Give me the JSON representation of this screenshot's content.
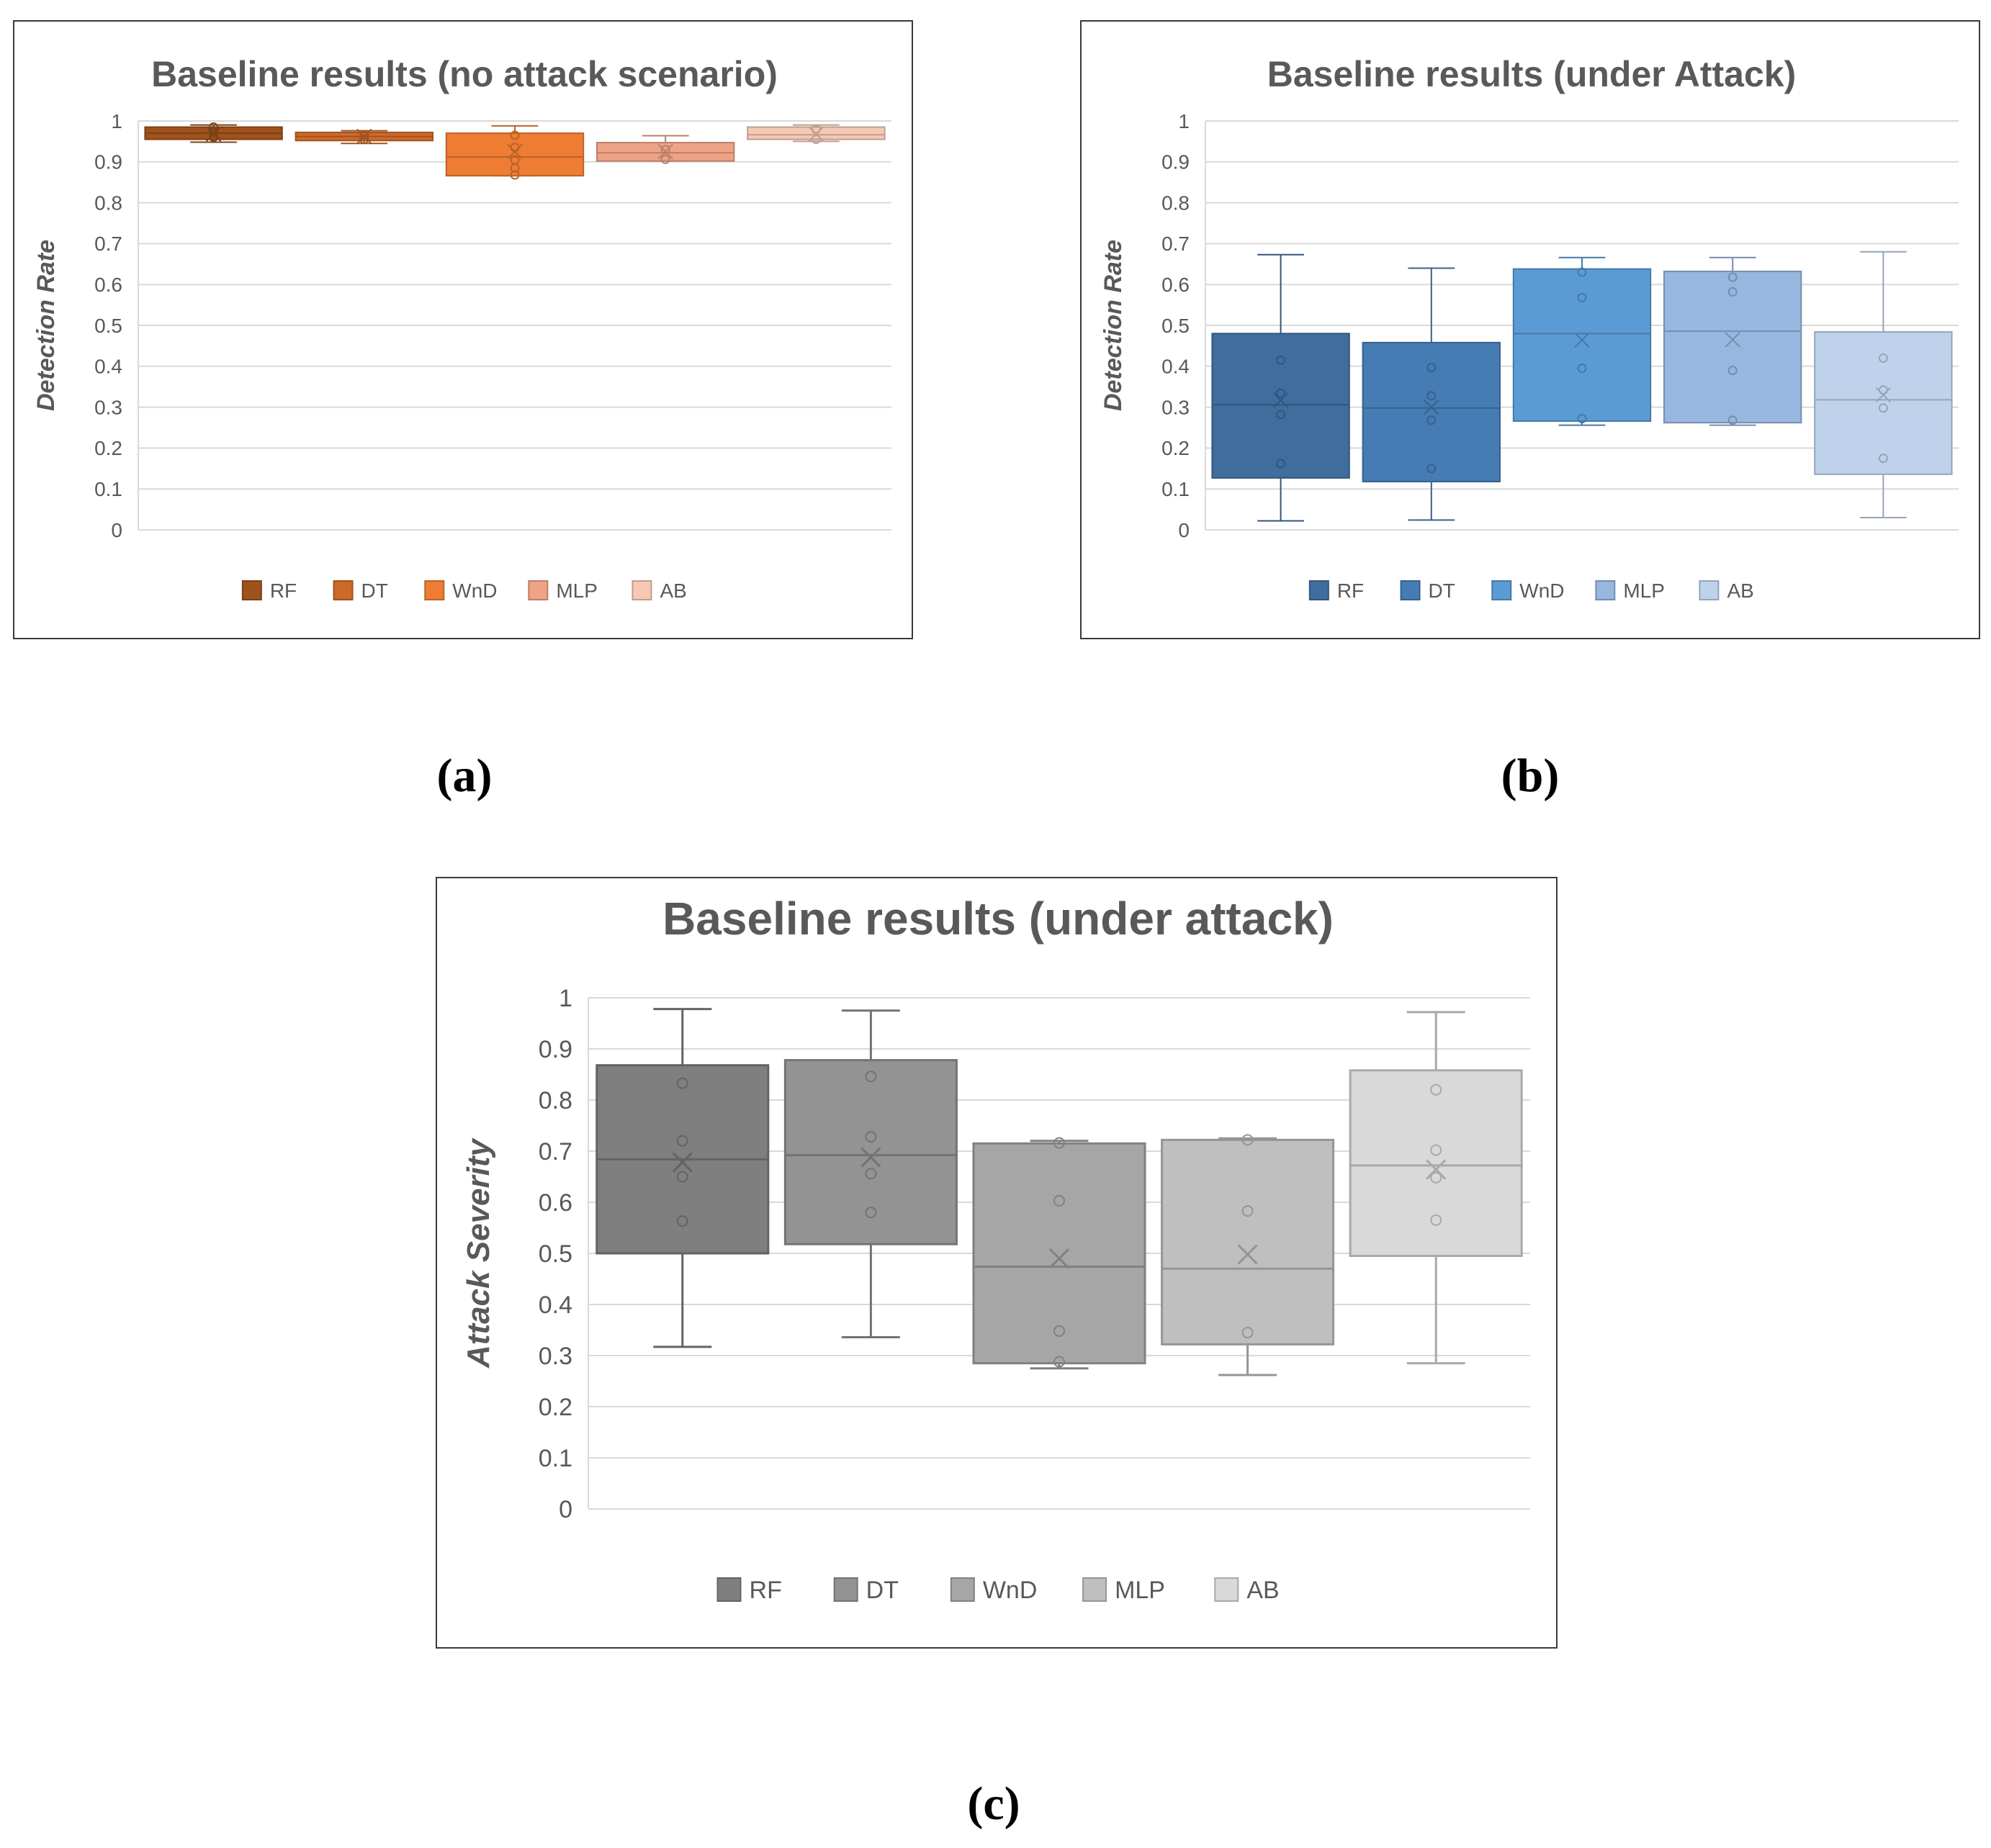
{
  "captions": [
    "(a)",
    "(b)",
    "(c)"
  ],
  "chart_data": [
    {
      "type": "box",
      "title": "Baseline results (no attack scenario)",
      "ylabel": "Detection Rate",
      "xlabel": "",
      "ylim": [
        0,
        1
      ],
      "yticks": [
        "0",
        "0.1",
        "0.2",
        "0.3",
        "0.4",
        "0.5",
        "0.6",
        "0.7",
        "0.8",
        "0.9",
        "1"
      ],
      "legend_position": "bottom",
      "series": [
        {
          "name": "RF",
          "color": "#A0521C",
          "min": 0.948,
          "q1": 0.955,
          "median": 0.97,
          "q3": 0.985,
          "max": 0.99,
          "mean": 0.968,
          "points": [
            0.96,
            0.972,
            0.985
          ]
        },
        {
          "name": "DT",
          "color": "#CC6A2A",
          "min": 0.945,
          "q1": 0.952,
          "median": 0.962,
          "q3": 0.972,
          "max": 0.976,
          "mean": 0.962,
          "points": [
            0.955,
            0.966
          ]
        },
        {
          "name": "WnD",
          "color": "#EE7D33",
          "min": 0.866,
          "q1": 0.866,
          "median": 0.912,
          "q3": 0.97,
          "max": 0.988,
          "mean": 0.925,
          "points": [
            0.868,
            0.885,
            0.905,
            0.935,
            0.965
          ]
        },
        {
          "name": "MLP",
          "color": "#EFA386",
          "min": 0.902,
          "q1": 0.902,
          "median": 0.922,
          "q3": 0.947,
          "max": 0.964,
          "mean": 0.925,
          "points": [
            0.906,
            0.93
          ]
        },
        {
          "name": "AB",
          "color": "#F6C9B5",
          "min": 0.95,
          "q1": 0.955,
          "median": 0.966,
          "q3": 0.985,
          "max": 0.99,
          "mean": 0.968,
          "points": [
            0.955,
            0.98
          ]
        }
      ]
    },
    {
      "type": "box",
      "title": "Baseline results (under Attack)",
      "ylabel": "Detection Rate",
      "xlabel": "",
      "ylim": [
        0,
        1
      ],
      "yticks": [
        "0",
        "0.1",
        "0.2",
        "0.3",
        "0.4",
        "0.5",
        "0.6",
        "0.7",
        "0.8",
        "0.9",
        "1"
      ],
      "legend_position": "bottom",
      "series": [
        {
          "name": "RF",
          "color": "#3F6E9E",
          "min": 0.022,
          "q1": 0.127,
          "median": 0.306,
          "q3": 0.48,
          "max": 0.673,
          "mean": 0.317,
          "points": [
            0.162,
            0.282,
            0.334,
            0.415
          ]
        },
        {
          "name": "DT",
          "color": "#467CB4",
          "min": 0.024,
          "q1": 0.118,
          "median": 0.298,
          "q3": 0.458,
          "max": 0.64,
          "mean": 0.3,
          "points": [
            0.15,
            0.268,
            0.328,
            0.397
          ]
        },
        {
          "name": "WnD",
          "color": "#5B9BD5",
          "min": 0.256,
          "q1": 0.266,
          "median": 0.48,
          "q3": 0.638,
          "max": 0.666,
          "mean": 0.464,
          "points": [
            0.272,
            0.395,
            0.568,
            0.63
          ]
        },
        {
          "name": "MLP",
          "color": "#97B6E0",
          "min": 0.256,
          "q1": 0.262,
          "median": 0.486,
          "q3": 0.632,
          "max": 0.666,
          "mean": 0.465,
          "points": [
            0.268,
            0.39,
            0.582,
            0.618
          ]
        },
        {
          "name": "AB",
          "color": "#BFD2EC",
          "min": 0.03,
          "q1": 0.136,
          "median": 0.318,
          "q3": 0.484,
          "max": 0.68,
          "mean": 0.33,
          "points": [
            0.175,
            0.298,
            0.342,
            0.42
          ]
        }
      ]
    },
    {
      "type": "box",
      "title": "Baseline results (under attack)",
      "ylabel": "Attack Severity",
      "xlabel": "",
      "ylim": [
        0,
        1
      ],
      "yticks": [
        "0",
        "0.1",
        "0.2",
        "0.3",
        "0.4",
        "0.5",
        "0.6",
        "0.7",
        "0.8",
        "0.9",
        "1"
      ],
      "legend_position": "bottom",
      "series": [
        {
          "name": "RF",
          "color": "#7F7F7F",
          "min": 0.317,
          "q1": 0.5,
          "median": 0.684,
          "q3": 0.868,
          "max": 0.978,
          "mean": 0.678,
          "points": [
            0.563,
            0.65,
            0.72,
            0.833
          ]
        },
        {
          "name": "DT",
          "color": "#939393",
          "min": 0.336,
          "q1": 0.518,
          "median": 0.692,
          "q3": 0.878,
          "max": 0.975,
          "mean": 0.688,
          "points": [
            0.58,
            0.656,
            0.728,
            0.846
          ]
        },
        {
          "name": "WnD",
          "color": "#A6A6A6",
          "min": 0.275,
          "q1": 0.285,
          "median": 0.474,
          "q3": 0.715,
          "max": 0.72,
          "mean": 0.49,
          "points": [
            0.288,
            0.348,
            0.603,
            0.716
          ]
        },
        {
          "name": "MLP",
          "color": "#BFBFBF",
          "min": 0.262,
          "q1": 0.322,
          "median": 0.47,
          "q3": 0.722,
          "max": 0.725,
          "mean": 0.498,
          "points": [
            0.345,
            0.583,
            0.722
          ]
        },
        {
          "name": "AB",
          "color": "#D9D9D9",
          "min": 0.285,
          "q1": 0.495,
          "median": 0.672,
          "q3": 0.858,
          "max": 0.972,
          "mean": 0.664,
          "points": [
            0.565,
            0.648,
            0.702,
            0.82
          ]
        }
      ]
    }
  ]
}
